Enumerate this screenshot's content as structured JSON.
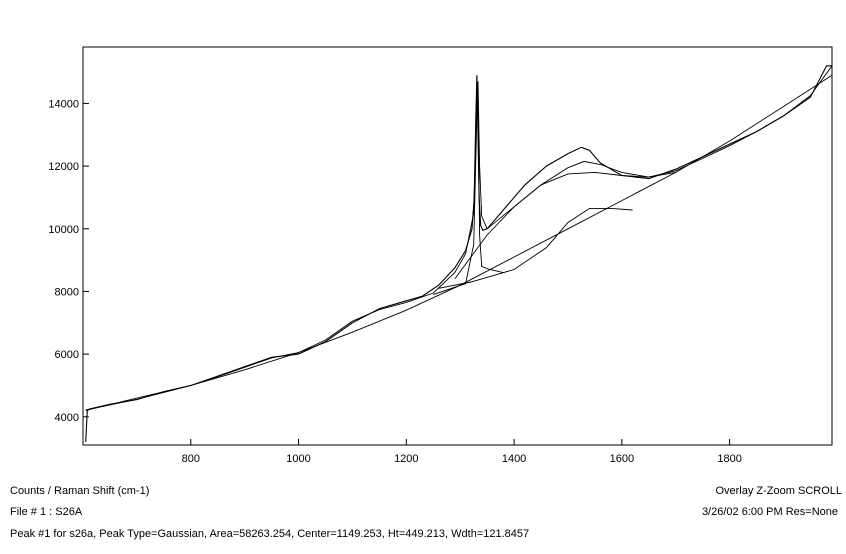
{
  "chart_data": {
    "type": "line",
    "title": "",
    "xlabel": "",
    "ylabel": "",
    "xlim": [
      600,
      1990
    ],
    "ylim": [
      3100,
      15800
    ],
    "x_ticks": [
      800,
      1000,
      1200,
      1400,
      1600,
      1800
    ],
    "y_ticks": [
      4000,
      6000,
      8000,
      10000,
      12000,
      14000
    ],
    "x_tick_labels": [
      "800",
      "1000",
      "1200",
      "1400",
      "1600",
      "1800"
    ],
    "y_tick_labels": [
      "4000",
      "6000",
      "8000",
      "10000",
      "12000",
      "14000"
    ],
    "grid": false,
    "legend": "none",
    "series": [
      {
        "role": "spectrum",
        "x": [
          605,
          608,
          612,
          650,
          700,
          750,
          800,
          850,
          900,
          950,
          1000,
          1050,
          1100,
          1150,
          1200,
          1230,
          1260,
          1290,
          1310,
          1322,
          1326,
          1329,
          1331,
          1333,
          1335,
          1338,
          1342,
          1350,
          1380,
          1420,
          1460,
          1500,
          1525,
          1540,
          1560,
          1600,
          1650,
          1700,
          1750,
          1800,
          1850,
          1900,
          1950,
          1980,
          1990
        ],
        "y": [
          3200,
          4200,
          4250,
          4400,
          4550,
          4800,
          5000,
          5300,
          5600,
          5900,
          6000,
          6400,
          7000,
          7450,
          7700,
          7850,
          8200,
          8750,
          9300,
          10000,
          11000,
          13500,
          14900,
          13000,
          11000,
          10100,
          9950,
          10000,
          10600,
          11400,
          12000,
          12400,
          12600,
          12500,
          12100,
          11700,
          11600,
          11900,
          12300,
          12700,
          13100,
          13600,
          14200,
          15200,
          15200
        ]
      },
      {
        "role": "fitted-sum",
        "x": [
          605,
          650,
          700,
          750,
          800,
          850,
          900,
          950,
          1000,
          1050,
          1100,
          1150,
          1200,
          1250,
          1290,
          1310,
          1325,
          1330,
          1333,
          1336,
          1340,
          1350,
          1400,
          1450,
          1500,
          1530,
          1560,
          1600,
          1650,
          1700,
          1750,
          1800,
          1850,
          1900,
          1950,
          1990
        ],
        "y": [
          4220,
          4380,
          4560,
          4780,
          5000,
          5280,
          5580,
          5880,
          6050,
          6450,
          7050,
          7420,
          7650,
          7950,
          8600,
          9200,
          10500,
          13500,
          14700,
          12000,
          10400,
          10000,
          10700,
          11400,
          11950,
          12150,
          12050,
          11800,
          11650,
          11850,
          12250,
          12650,
          13100,
          13600,
          14250,
          15200
        ]
      },
      {
        "role": "broad-band-fit",
        "x": [
          1290,
          1350,
          1400,
          1450,
          1500,
          1550,
          1600,
          1650,
          1700
        ],
        "y": [
          8400,
          9800,
          10700,
          11400,
          11750,
          11800,
          11700,
          11650,
          11800
        ]
      },
      {
        "role": "peak-component",
        "x": [
          1260,
          1320,
          1400,
          1460,
          1500,
          1540,
          1580,
          1620
        ],
        "y": [
          8100,
          8300,
          8700,
          9400,
          10200,
          10650,
          10650,
          10600
        ]
      },
      {
        "role": "narrow-peak-component",
        "x": [
          1250,
          1310,
          1325,
          1330,
          1332,
          1334,
          1336,
          1340,
          1355,
          1380
        ],
        "y": [
          7900,
          8250,
          9500,
          13000,
          14600,
          13000,
          9800,
          8800,
          8700,
          8600
        ]
      },
      {
        "role": "baseline",
        "x": [
          605,
          700,
          800,
          900,
          1000,
          1100,
          1200,
          1300,
          1400,
          1500,
          1600,
          1700,
          1800,
          1900,
          1990
        ],
        "y": [
          4200,
          4600,
          5000,
          5500,
          6050,
          6700,
          7400,
          8200,
          9100,
          10000,
          10900,
          11800,
          12800,
          13900,
          14900
        ]
      }
    ]
  },
  "footer": {
    "axis_units": "Counts / Raman Shift (cm-1)",
    "file_info": "File # 1 : S26A",
    "peak_info": "Peak #1 for s26a, Peak Type=Gaussian, Area=58263.254, Center=1149.253, Ht=449.213, Wdth=121.8457",
    "mode_info": "Overlay Z-Zoom SCROLL",
    "datetime_res": "3/26/02  6:00 PM  Res=None"
  }
}
